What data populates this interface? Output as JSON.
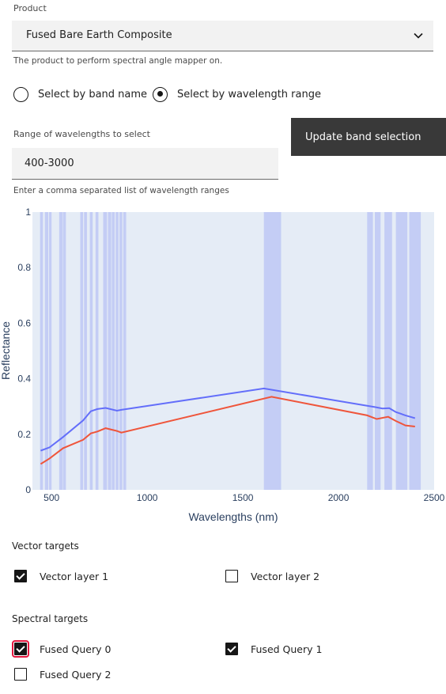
{
  "product": {
    "label": "Product",
    "value": "Fused Bare Earth Composite",
    "helper": "The product to perform spectral angle mapper on."
  },
  "selection_mode": {
    "options": [
      {
        "label": "Select by band name",
        "selected": false
      },
      {
        "label": "Select by wavelength range",
        "selected": true
      }
    ]
  },
  "wavelength_range": {
    "label": "Range of wavelengths to select",
    "value": "400-3000",
    "helper": "Enter a comma separated list of wavelength ranges"
  },
  "update_button": {
    "label": "Update band selection"
  },
  "chart_data": {
    "type": "line",
    "xlabel": "Wavelengths (nm)",
    "ylabel": "Reflectance",
    "xlim": [
      400,
      2500
    ],
    "ylim": [
      0,
      1
    ],
    "xticks": [
      500,
      1000,
      1500,
      2000,
      2500
    ],
    "yticks": [
      0,
      0.2,
      0.4,
      0.6,
      0.8,
      1
    ],
    "xtick_labels": [
      "500",
      "1000",
      "1500",
      "2000",
      "2500"
    ],
    "ytick_labels": [
      "0",
      "0.2",
      "0.4",
      "0.6",
      "0.8",
      "1"
    ],
    "plot_bg_color": "#e5ecf6",
    "band_color": "#c4cdf5",
    "bands": [
      [
        440,
        455
      ],
      [
        465,
        483
      ],
      [
        487,
        500
      ],
      [
        540,
        558
      ],
      [
        560,
        575
      ],
      [
        650,
        665
      ],
      [
        670,
        685
      ],
      [
        700,
        715
      ],
      [
        730,
        745
      ],
      [
        770,
        790
      ],
      [
        795,
        812
      ],
      [
        815,
        830
      ],
      [
        835,
        850
      ],
      [
        855,
        870
      ],
      [
        875,
        890
      ],
      [
        1610,
        1700
      ],
      [
        2150,
        2180
      ],
      [
        2190,
        2220
      ],
      [
        2240,
        2280
      ],
      [
        2300,
        2360
      ],
      [
        2370,
        2430
      ]
    ],
    "series": [
      {
        "color": "#636efa",
        "x": [
          443,
          490,
          560,
          665,
          705,
          740,
          783,
          842,
          865,
          1610,
          2190,
          2230,
          2265,
          2300,
          2350,
          2400
        ],
        "y": [
          0.141,
          0.153,
          0.19,
          0.25,
          0.283,
          0.291,
          0.295,
          0.285,
          0.288,
          0.365,
          0.298,
          0.293,
          0.294,
          0.28,
          0.268,
          0.258
        ]
      },
      {
        "color": "#ef553b",
        "x": [
          443,
          490,
          560,
          665,
          705,
          740,
          783,
          842,
          865,
          1650,
          2150,
          2200,
          2260,
          2300,
          2350,
          2400
        ],
        "y": [
          0.093,
          0.113,
          0.15,
          0.18,
          0.203,
          0.21,
          0.222,
          0.212,
          0.206,
          0.335,
          0.268,
          0.255,
          0.263,
          0.248,
          0.232,
          0.228
        ]
      }
    ]
  },
  "vector_targets": {
    "title": "Vector targets",
    "items": [
      {
        "label": "Vector layer 1",
        "checked": true
      },
      {
        "label": "Vector layer 2",
        "checked": false
      }
    ]
  },
  "spectral_targets": {
    "title": "Spectral targets",
    "items": [
      {
        "label": "Fused Query 0",
        "checked": true
      },
      {
        "label": "Fused Query 1",
        "checked": true
      },
      {
        "label": "Fused Query 2",
        "checked": false
      }
    ]
  }
}
